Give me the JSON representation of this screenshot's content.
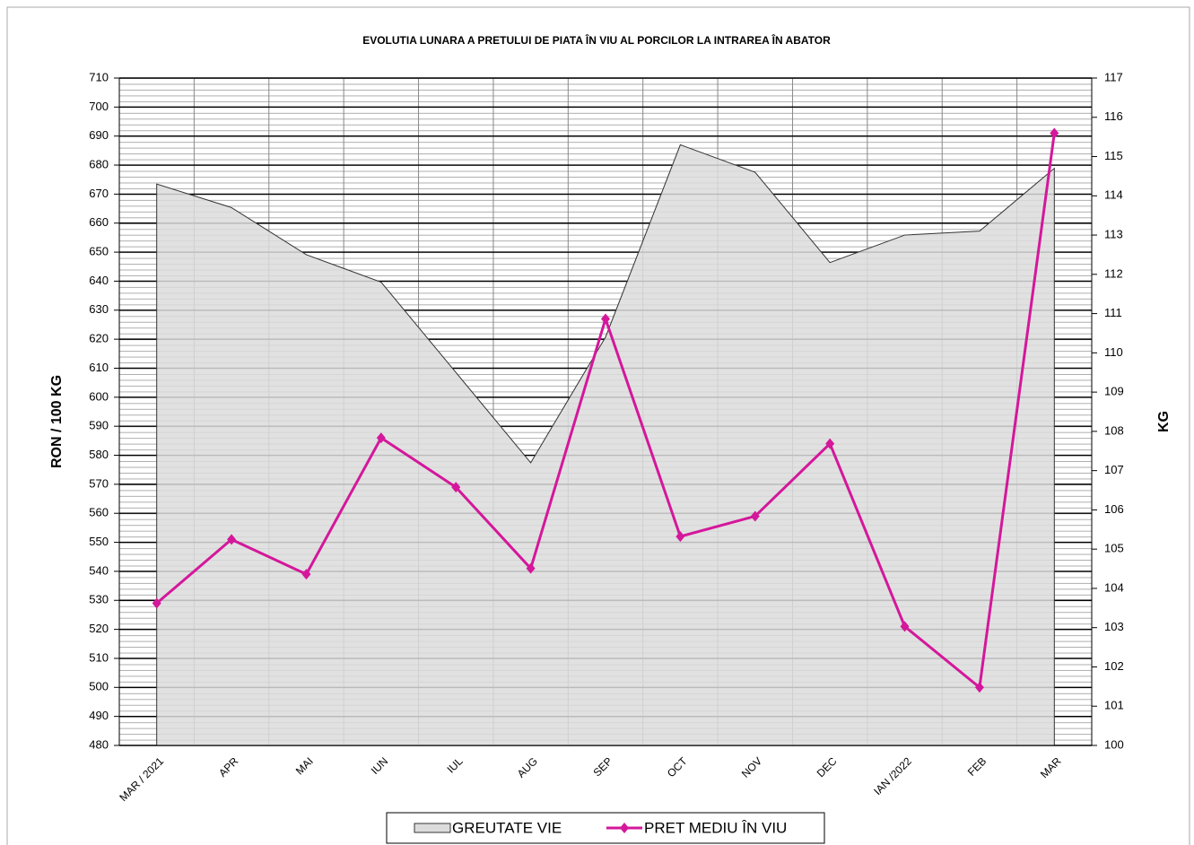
{
  "chart_data": {
    "type": "line",
    "title": "EVOLUTIA LUNARA A PRETULUI DE PIATA ÎN VIU AL PORCILOR LA INTRAREA ÎN ABATOR",
    "ylabel": "RON / 100 KG",
    "y2label": "KG",
    "categories": [
      "MAR / 2021",
      "APR",
      "MAI",
      "IUN",
      "IUL",
      "AUG",
      "SEP",
      "OCT",
      "NOV",
      "DEC",
      "IAN /2022",
      "FEB",
      "MAR"
    ],
    "series": [
      {
        "name": "GREUTATE VIE",
        "type": "area",
        "color": "#dcdcdc",
        "axis": "y2",
        "values": [
          114.3,
          113.7,
          112.5,
          111.8,
          109.5,
          107.2,
          110.4,
          115.3,
          114.6,
          112.3,
          113.0,
          113.1,
          114.7
        ]
      },
      {
        "name": "PRET MEDIU ÎN VIU",
        "type": "line",
        "color": "#d4179b",
        "values": [
          529,
          551,
          539,
          586,
          569,
          541,
          627,
          552,
          559,
          584,
          521,
          500,
          691
        ]
      }
    ],
    "ylim": [
      480,
      710
    ],
    "yticks": [
      480,
      490,
      500,
      510,
      520,
      530,
      540,
      550,
      560,
      570,
      580,
      590,
      600,
      610,
      620,
      630,
      640,
      650,
      660,
      670,
      680,
      690,
      700,
      710
    ],
    "y2lim": [
      100,
      117
    ],
    "y2ticks": [
      100,
      101,
      102,
      103,
      104,
      105,
      106,
      107,
      108,
      109,
      110,
      111,
      112,
      113,
      114,
      115,
      116,
      117
    ],
    "grid": true,
    "legend": "bottom"
  }
}
